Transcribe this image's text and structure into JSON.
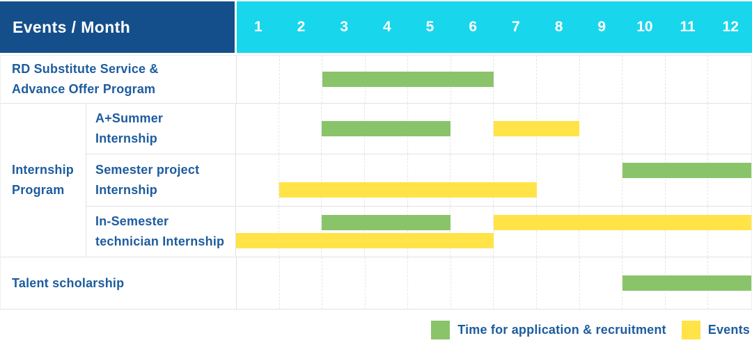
{
  "colors": {
    "header_bg": "#154f8b",
    "months_bg": "#18d6ec",
    "label_text": "#1d5c9e",
    "green": "#8ac46a",
    "yellow": "#ffe347",
    "grid_line": "#e5e5e5",
    "row_border": "#e2e2e2"
  },
  "header": {
    "title": "Events / Month",
    "months": [
      "1",
      "2",
      "3",
      "4",
      "5",
      "6",
      "7",
      "8",
      "9",
      "10",
      "11",
      "12"
    ]
  },
  "groups": {
    "internship": {
      "label": "Internship Program",
      "display_label": "Internship\nProgram"
    }
  },
  "rows": [
    {
      "display_label": "RD Substitute Service &\nAdvance Offer Program"
    },
    {
      "display_label": "A+Summer\nInternship"
    },
    {
      "display_label": "Semester project\nInternship"
    },
    {
      "display_label": "In-Semester\ntechnician Internship"
    },
    {
      "display_label": "Talent scholarship"
    }
  ],
  "legend": [
    {
      "label": "Time for application & recruitment",
      "color": "#8ac46a"
    },
    {
      "label": "Events",
      "color": "#ffe347"
    }
  ],
  "chart_data": {
    "type": "bar",
    "subtype": "gantt",
    "title": "Events / Month",
    "x_axis": {
      "unit": "month",
      "ticks": [
        1,
        2,
        3,
        4,
        5,
        6,
        7,
        8,
        9,
        10,
        11,
        12
      ],
      "range": [
        1,
        12
      ],
      "grid": true
    },
    "series_colors": {
      "Time for application & recruitment": "#8ac46a",
      "Events": "#ffe347"
    },
    "legend": [
      "Time for application & recruitment",
      "Events"
    ],
    "legend_position": "bottom-right",
    "rows": [
      {
        "group": null,
        "label": "RD Substitute Service & Advance Offer Program",
        "bars": [
          {
            "series": "Time for application & recruitment",
            "start_month": 3,
            "end_month": 6,
            "lane": "middle"
          }
        ]
      },
      {
        "group": "Internship Program",
        "label": "A+Summer Internship",
        "bars": [
          {
            "series": "Time for application & recruitment",
            "start_month": 3,
            "end_month": 5,
            "lane": "middle"
          },
          {
            "series": "Events",
            "start_month": 7,
            "end_month": 8,
            "lane": "middle"
          }
        ]
      },
      {
        "group": "Internship Program",
        "label": "Semester project Internship",
        "bars": [
          {
            "series": "Time for application & recruitment",
            "start_month": 10,
            "end_month": 12,
            "lane": "top"
          },
          {
            "series": "Events",
            "start_month": 2,
            "end_month": 7,
            "lane": "bottom"
          }
        ]
      },
      {
        "group": "Internship Program",
        "label": "In-Semester technician Internship",
        "bars": [
          {
            "series": "Time for application & recruitment",
            "start_month": 3,
            "end_month": 5,
            "lane": "top"
          },
          {
            "series": "Events",
            "start_month": 7,
            "end_month": 12,
            "lane": "top"
          },
          {
            "series": "Events",
            "start_month": 1,
            "end_month": 6,
            "lane": "bottom"
          }
        ]
      },
      {
        "group": null,
        "label": "Talent scholarship",
        "bars": [
          {
            "series": "Time for application & recruitment",
            "start_month": 10,
            "end_month": 12,
            "lane": "middle"
          }
        ]
      }
    ]
  }
}
